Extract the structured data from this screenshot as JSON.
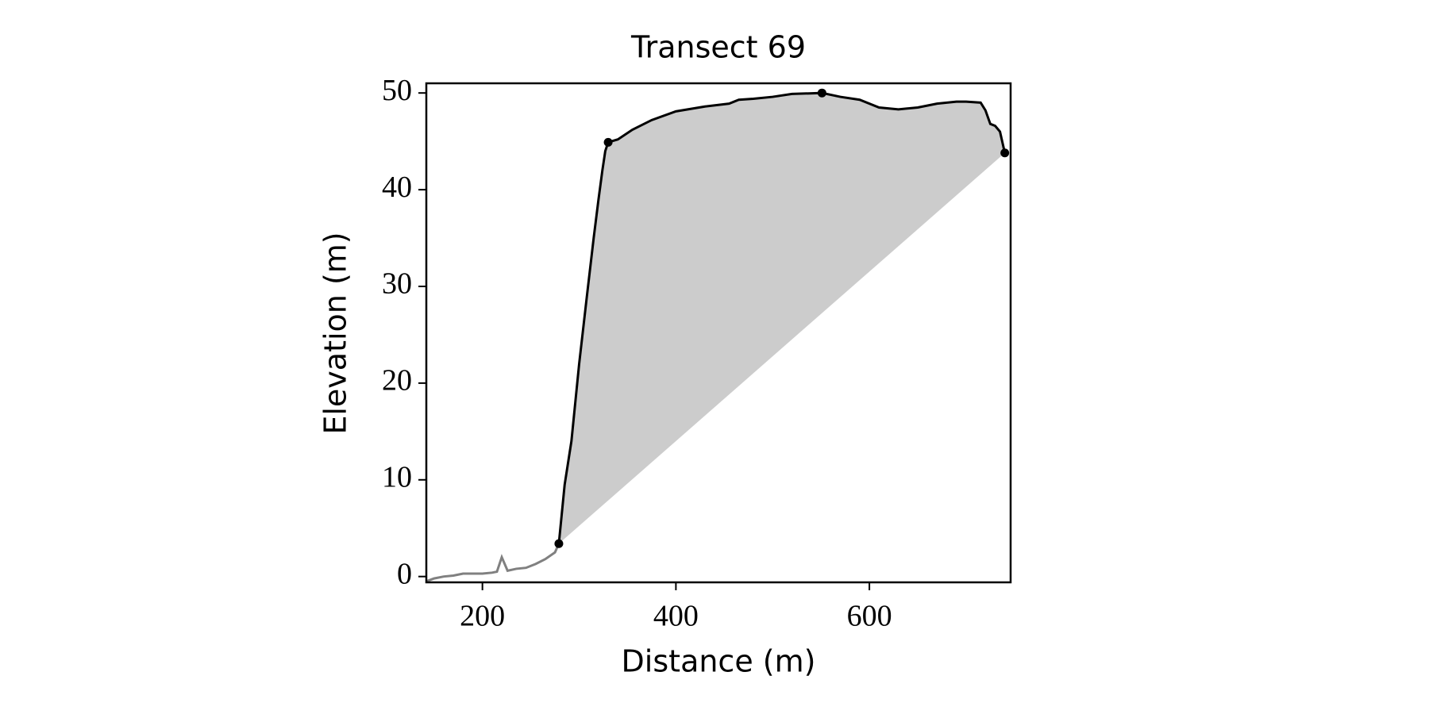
{
  "chart_data": {
    "type": "line",
    "title": "Transect 69",
    "x_label": "Distance (m)",
    "y_label": "Elevation (m)",
    "xlim": [
      142,
      746
    ],
    "ylim": [
      -0.6,
      51
    ],
    "xticks": [
      200,
      400,
      600
    ],
    "yticks": [
      0,
      10,
      20,
      30,
      40,
      50
    ],
    "grid": false,
    "fill_color": "#cccccc",
    "series": [
      {
        "color": "#808080",
        "x": [
          142,
          150,
          160,
          170,
          180,
          190,
          200,
          210,
          215,
          220,
          226,
          235,
          245,
          255,
          265,
          275,
          279
        ],
        "values": [
          -0.5,
          -0.2,
          0.0,
          0.1,
          0.3,
          0.3,
          0.3,
          0.4,
          0.5,
          2.0,
          0.6,
          0.8,
          0.9,
          1.3,
          1.8,
          2.5,
          3.4
        ]
      },
      {
        "color": "#000000",
        "x": [
          279,
          285,
          292,
          300,
          308,
          315,
          320,
          324,
          327,
          330,
          340,
          355,
          375,
          400,
          430,
          455,
          465,
          480,
          500,
          520,
          551,
          570,
          590,
          610,
          630,
          650,
          670,
          690,
          700,
          715,
          720,
          725,
          730,
          735,
          740
        ],
        "values": [
          3.4,
          9.5,
          14,
          22,
          29,
          35,
          39,
          42,
          44,
          44.9,
          45.2,
          46.2,
          47.2,
          48.1,
          48.6,
          48.9,
          49.3,
          49.4,
          49.6,
          49.9,
          50.0,
          49.6,
          49.3,
          48.5,
          48.3,
          48.5,
          48.9,
          49.1,
          49.1,
          49.0,
          48.2,
          46.8,
          46.6,
          46.0,
          43.8
        ]
      }
    ],
    "points": {
      "color": "#000000",
      "x": [
        279,
        330,
        551,
        740
      ],
      "values": [
        3.4,
        44.9,
        50.0,
        43.8
      ]
    }
  }
}
